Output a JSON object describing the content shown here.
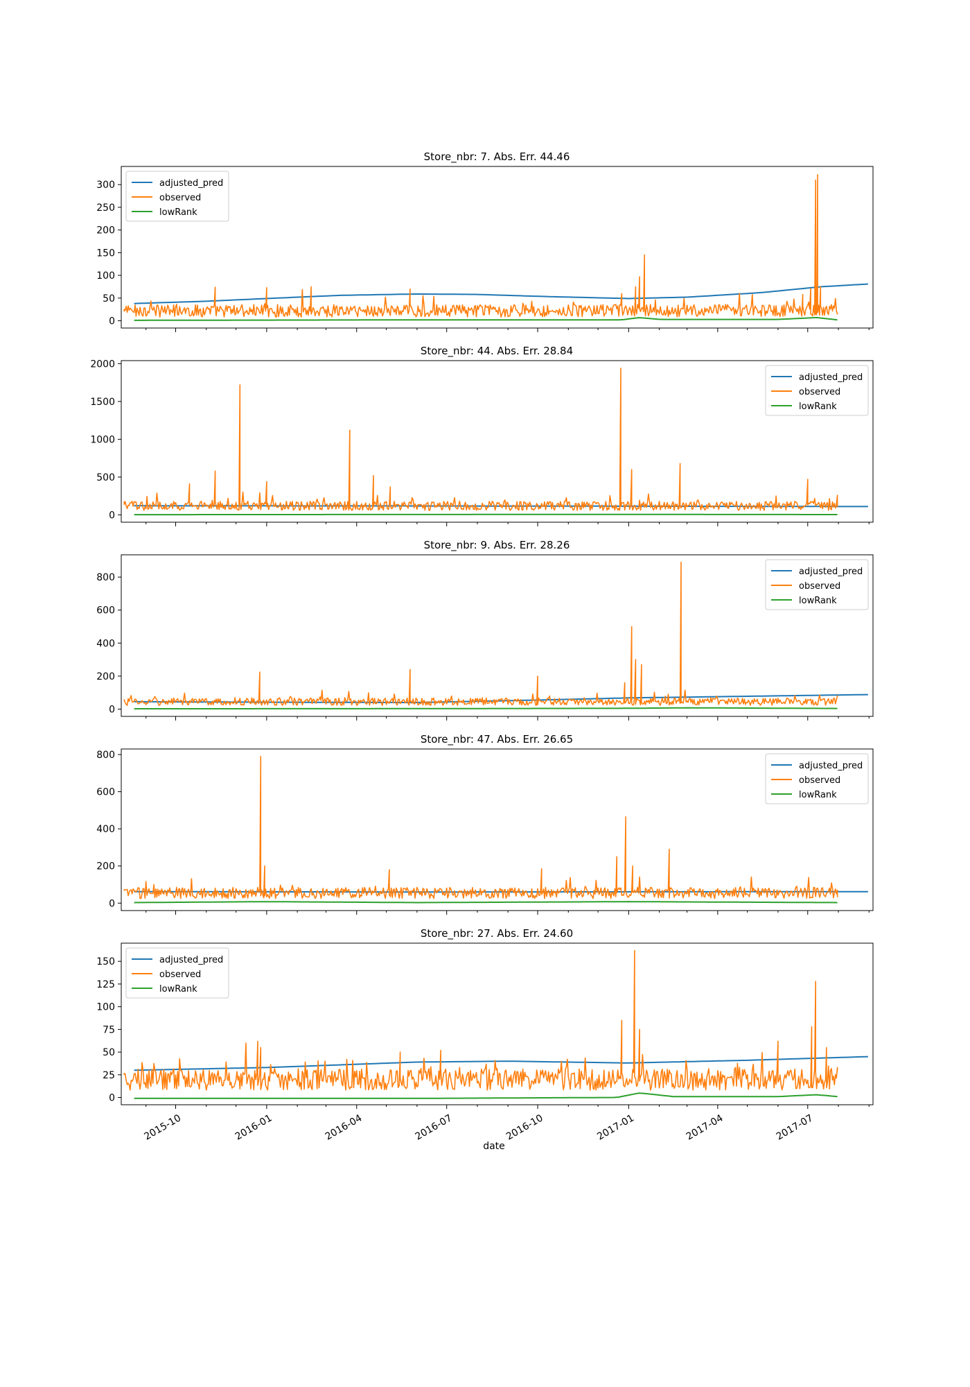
{
  "figure": {
    "xlabel": "date",
    "x_ticks": [
      "2015-10",
      "2016-01",
      "2016-04",
      "2016-07",
      "2016-10",
      "2017-01",
      "2017-04",
      "2017-07"
    ],
    "series_colors": {
      "adjusted_pred": "#1f77b4",
      "observed": "#ff7f0e",
      "lowRank": "#2ca02c"
    }
  },
  "chart_data": [
    {
      "type": "line",
      "title": "Store_nbr: 7. Abs. Err. 44.46",
      "xlabel": "",
      "ylabel": "",
      "xlim": [
        "2015-08-07",
        "2017-09-05"
      ],
      "ylim": [
        -16,
        340
      ],
      "yticks": [
        0,
        50,
        100,
        150,
        200,
        250,
        300
      ],
      "legend": "upper left",
      "series": [
        {
          "name": "adjusted_pred",
          "points": [
            [
              "2015-08-20",
              38
            ],
            [
              "2015-11-01",
              43
            ],
            [
              "2016-01-01",
              49
            ],
            [
              "2016-03-15",
              56
            ],
            [
              "2016-06-01",
              59
            ],
            [
              "2016-08-01",
              58
            ],
            [
              "2016-10-15",
              53
            ],
            [
              "2017-01-01",
              49
            ],
            [
              "2017-03-01",
              52
            ],
            [
              "2017-05-15",
              62
            ],
            [
              "2017-07-15",
              75
            ],
            [
              "2017-08-31",
              81
            ]
          ]
        },
        {
          "name": "observed",
          "base": 22,
          "noise": 14,
          "spikes": [
            [
              "2015-08-10",
              20
            ],
            [
              "2015-11-10",
              74
            ],
            [
              "2016-01-01",
              73
            ],
            [
              "2016-02-15",
              75
            ],
            [
              "2016-05-25",
              70
            ],
            [
              "2016-12-25",
              60
            ],
            [
              "2017-01-08",
              75
            ],
            [
              "2017-01-12",
              97
            ],
            [
              "2017-01-17",
              145
            ],
            [
              "2017-06-26",
              58
            ],
            [
              "2017-07-04",
              71
            ],
            [
              "2017-07-09",
              310
            ],
            [
              "2017-07-11",
              322
            ],
            [
              "2017-07-14",
              75
            ],
            [
              "2017-07-31",
              15
            ]
          ]
        },
        {
          "name": "lowRank",
          "points": [
            [
              "2015-08-20",
              1
            ],
            [
              "2016-06-01",
              2
            ],
            [
              "2016-12-25",
              2
            ],
            [
              "2017-01-12",
              7
            ],
            [
              "2017-02-01",
              3
            ],
            [
              "2017-06-01",
              3
            ],
            [
              "2017-07-10",
              7
            ],
            [
              "2017-07-31",
              2
            ]
          ]
        }
      ]
    },
    {
      "type": "line",
      "title": "Store_nbr: 44. Abs. Err. 28.84",
      "xlabel": "",
      "ylabel": "",
      "xlim": [
        "2015-08-07",
        "2017-09-05"
      ],
      "ylim": [
        -97,
        2040
      ],
      "yticks": [
        0,
        500,
        1000,
        1500,
        2000
      ],
      "legend": "upper right",
      "series": [
        {
          "name": "adjusted_pred",
          "points": [
            [
              "2015-08-20",
              120
            ],
            [
              "2016-06-01",
              118
            ],
            [
              "2017-01-01",
              115
            ],
            [
              "2017-08-31",
              110
            ]
          ]
        },
        {
          "name": "observed",
          "base": 120,
          "noise": 60,
          "spikes": [
            [
              "2015-08-10",
              180
            ],
            [
              "2015-10-15",
              410
            ],
            [
              "2015-11-10",
              580
            ],
            [
              "2015-12-05",
              1720
            ],
            [
              "2016-01-01",
              440
            ],
            [
              "2016-03-25",
              1120
            ],
            [
              "2016-04-18",
              520
            ],
            [
              "2016-05-05",
              370
            ],
            [
              "2016-12-24",
              1940
            ],
            [
              "2017-01-04",
              600
            ],
            [
              "2017-02-22",
              680
            ],
            [
              "2017-07-01",
              470
            ],
            [
              "2017-07-31",
              260
            ]
          ]
        },
        {
          "name": "lowRank",
          "points": [
            [
              "2015-08-20",
              3
            ],
            [
              "2016-06-01",
              5
            ],
            [
              "2017-01-01",
              6
            ],
            [
              "2017-07-31",
              4
            ]
          ]
        }
      ]
    },
    {
      "type": "line",
      "title": "Store_nbr: 9. Abs. Err. 28.26",
      "xlabel": "",
      "ylabel": "",
      "xlim": [
        "2015-08-07",
        "2017-09-05"
      ],
      "ylim": [
        -44,
        935
      ],
      "yticks": [
        0,
        200,
        400,
        600,
        800
      ],
      "legend": "upper right",
      "series": [
        {
          "name": "adjusted_pred",
          "points": [
            [
              "2015-08-20",
              45
            ],
            [
              "2016-01-01",
              42
            ],
            [
              "2016-06-01",
              40
            ],
            [
              "2016-10-01",
              55
            ],
            [
              "2017-01-01",
              68
            ],
            [
              "2017-05-01",
              78
            ],
            [
              "2017-08-31",
              88
            ]
          ]
        },
        {
          "name": "observed",
          "base": 45,
          "noise": 22,
          "spikes": [
            [
              "2015-08-10",
              60
            ],
            [
              "2015-12-25",
              225
            ],
            [
              "2016-05-25",
              240
            ],
            [
              "2016-10-01",
              200
            ],
            [
              "2016-12-28",
              160
            ],
            [
              "2017-01-04",
              500
            ],
            [
              "2017-01-08",
              300
            ],
            [
              "2017-01-14",
              270
            ],
            [
              "2017-02-23",
              890
            ],
            [
              "2017-07-31",
              80
            ]
          ]
        },
        {
          "name": "lowRank",
          "points": [
            [
              "2015-08-20",
              2
            ],
            [
              "2016-06-01",
              3
            ],
            [
              "2017-01-01",
              5
            ],
            [
              "2017-03-01",
              8
            ],
            [
              "2017-07-31",
              4
            ]
          ]
        }
      ]
    },
    {
      "type": "line",
      "title": "Store_nbr: 47. Abs. Err. 26.65",
      "xlabel": "",
      "ylabel": "",
      "xlim": [
        "2015-08-07",
        "2017-09-05"
      ],
      "ylim": [
        -40,
        830
      ],
      "yticks": [
        0,
        200,
        400,
        600,
        800
      ],
      "legend": "upper right",
      "series": [
        {
          "name": "adjusted_pred",
          "points": [
            [
              "2015-08-20",
              62
            ],
            [
              "2016-06-01",
              60
            ],
            [
              "2017-01-01",
              61
            ],
            [
              "2017-08-31",
              62
            ]
          ]
        },
        {
          "name": "observed",
          "base": 55,
          "noise": 30,
          "spikes": [
            [
              "2015-08-10",
              75
            ],
            [
              "2015-12-26",
              790
            ],
            [
              "2015-12-30",
              200
            ],
            [
              "2016-05-04",
              180
            ],
            [
              "2016-10-05",
              185
            ],
            [
              "2016-12-20",
              250
            ],
            [
              "2016-12-29",
              465
            ],
            [
              "2017-01-05",
              200
            ],
            [
              "2017-02-11",
              290
            ],
            [
              "2017-07-31",
              70
            ]
          ]
        },
        {
          "name": "lowRank",
          "points": [
            [
              "2015-08-20",
              3
            ],
            [
              "2016-01-01",
              8
            ],
            [
              "2016-06-01",
              3
            ],
            [
              "2017-01-01",
              8
            ],
            [
              "2017-07-31",
              3
            ]
          ]
        }
      ]
    },
    {
      "type": "line",
      "title": "Store_nbr: 27. Abs. Err. 24.60",
      "xlabel": "date",
      "ylabel": "",
      "xlim": [
        "2015-08-07",
        "2017-09-05"
      ],
      "ylim": [
        -8,
        170
      ],
      "yticks": [
        0,
        25,
        50,
        75,
        100,
        125,
        150
      ],
      "legend": "upper left",
      "series": [
        {
          "name": "adjusted_pred",
          "points": [
            [
              "2015-08-20",
              30
            ],
            [
              "2016-01-01",
              33
            ],
            [
              "2016-06-01",
              39
            ],
            [
              "2016-09-01",
              40
            ],
            [
              "2017-01-01",
              38
            ],
            [
              "2017-05-01",
              41
            ],
            [
              "2017-08-31",
              45
            ]
          ]
        },
        {
          "name": "observed",
          "base": 20,
          "noise": 12,
          "spikes": [
            [
              "2015-08-10",
              25
            ],
            [
              "2015-12-23",
              62
            ],
            [
              "2015-12-26",
              55
            ],
            [
              "2016-05-15",
              50
            ],
            [
              "2016-06-25",
              52
            ],
            [
              "2016-12-25",
              85
            ],
            [
              "2017-01-07",
              162
            ],
            [
              "2017-01-12",
              75
            ],
            [
              "2017-06-01",
              62
            ],
            [
              "2017-07-05",
              78
            ],
            [
              "2017-07-09",
              128
            ],
            [
              "2017-07-20",
              55
            ],
            [
              "2017-07-31",
              33
            ]
          ]
        },
        {
          "name": "lowRank",
          "points": [
            [
              "2015-08-20",
              -1
            ],
            [
              "2016-06-01",
              -1
            ],
            [
              "2016-12-20",
              0
            ],
            [
              "2017-01-12",
              5
            ],
            [
              "2017-02-15",
              1
            ],
            [
              "2017-06-01",
              1
            ],
            [
              "2017-07-10",
              3
            ],
            [
              "2017-07-31",
              1
            ]
          ]
        }
      ]
    }
  ]
}
